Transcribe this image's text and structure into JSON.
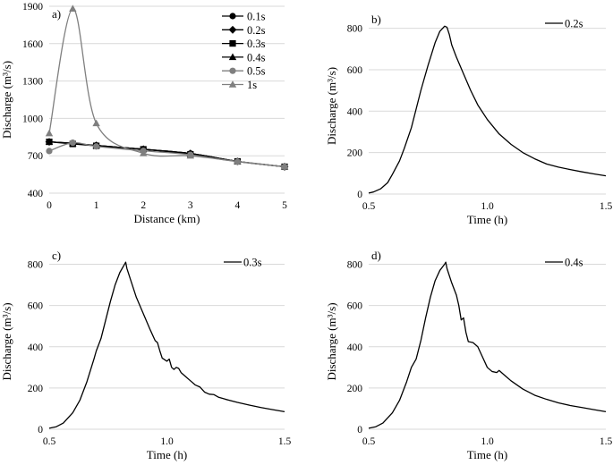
{
  "chart_data": [
    {
      "panel": "a)",
      "type": "line",
      "xlabel": "Distance (km)",
      "ylabel": "Discharge (m³/s)",
      "xlim": [
        0,
        5
      ],
      "ylim": [
        400,
        1900
      ],
      "xticks": [
        0,
        1,
        2,
        3,
        4,
        5
      ],
      "yticks": [
        400,
        700,
        1000,
        1300,
        1600,
        1900
      ],
      "grid": true,
      "legend_position": "top-right",
      "x": [
        0,
        0.5,
        1,
        2,
        3,
        4,
        5
      ],
      "series": [
        {
          "name": "0.1s",
          "values": [
            812,
            800,
            783,
            752,
            718,
            655,
            612
          ],
          "color": "#000000",
          "marker": "circle"
        },
        {
          "name": "0.2s",
          "values": [
            812,
            800,
            783,
            752,
            718,
            655,
            612
          ],
          "color": "#000000",
          "marker": "diamond"
        },
        {
          "name": "0.3s",
          "values": [
            812,
            795,
            780,
            752,
            712,
            655,
            612
          ],
          "color": "#000000",
          "marker": "square"
        },
        {
          "name": "0.4s",
          "values": [
            812,
            800,
            783,
            752,
            718,
            655,
            612
          ],
          "color": "#000000",
          "marker": "triangle"
        },
        {
          "name": "0.5s",
          "values": [
            738,
            805,
            775,
            740,
            708,
            652,
            612
          ],
          "color": "#7f7f7f",
          "marker": "circle"
        },
        {
          "name": "1s",
          "values": [
            880,
            1880,
            960,
            720,
            700,
            655,
            612
          ],
          "color": "#7f7f7f",
          "marker": "triangle"
        }
      ]
    },
    {
      "panel": "b)",
      "type": "line",
      "xlabel": "Time (h)",
      "ylabel": "Discharge (m³/s)",
      "xlim": [
        0.5,
        1.5
      ],
      "ylim": [
        0,
        850
      ],
      "xticks": [
        0.5,
        1.0,
        1.5
      ],
      "xtick_labels": [
        "0.5",
        "1.0",
        "1.5"
      ],
      "yticks": [
        0,
        200,
        400,
        600,
        800
      ],
      "grid": true,
      "legend_position": "top-right",
      "series": [
        {
          "name": "0.2s",
          "x": [
            0.5,
            0.52,
            0.55,
            0.58,
            0.6,
            0.63,
            0.65,
            0.68,
            0.7,
            0.72,
            0.75,
            0.78,
            0.8,
            0.82,
            0.83,
            0.84,
            0.85,
            0.87,
            0.9,
            0.93,
            0.96,
            1.0,
            1.05,
            1.1,
            1.15,
            1.2,
            1.25,
            1.3,
            1.35,
            1.4,
            1.45,
            1.5
          ],
          "y": [
            5,
            10,
            25,
            55,
            95,
            160,
            220,
            320,
            410,
            500,
            620,
            730,
            785,
            810,
            805,
            770,
            720,
            660,
            580,
            500,
            430,
            360,
            290,
            240,
            200,
            170,
            145,
            130,
            118,
            107,
            97,
            88
          ]
        }
      ]
    },
    {
      "panel": "c)",
      "type": "line",
      "xlabel": "Time (h)",
      "ylabel": "Discharge (m³/s)",
      "xlim": [
        0.5,
        1.5
      ],
      "ylim": [
        0,
        850
      ],
      "xticks": [
        0.5,
        1.0,
        1.5
      ],
      "xtick_labels": [
        "0.5",
        "1.0",
        "1.5"
      ],
      "yticks": [
        0,
        200,
        400,
        600,
        800
      ],
      "grid": true,
      "legend_position": "top-right",
      "series": [
        {
          "name": "0.3s",
          "x": [
            0.5,
            0.53,
            0.56,
            0.6,
            0.63,
            0.66,
            0.69,
            0.7,
            0.72,
            0.74,
            0.76,
            0.78,
            0.8,
            0.82,
            0.825,
            0.83,
            0.85,
            0.87,
            0.9,
            0.93,
            0.95,
            0.96,
            0.97,
            0.98,
            1.0,
            1.01,
            1.02,
            1.03,
            1.04,
            1.05,
            1.06,
            1.08,
            1.1,
            1.12,
            1.14,
            1.16,
            1.18,
            1.2,
            1.22,
            1.25,
            1.3,
            1.35,
            1.4,
            1.45,
            1.5
          ],
          "y": [
            5,
            12,
            30,
            80,
            140,
            230,
            340,
            380,
            440,
            530,
            620,
            700,
            760,
            800,
            810,
            780,
            710,
            640,
            560,
            480,
            430,
            420,
            380,
            345,
            330,
            340,
            300,
            290,
            300,
            295,
            275,
            255,
            235,
            215,
            205,
            180,
            170,
            168,
            155,
            145,
            130,
            117,
            105,
            95,
            85
          ]
        }
      ]
    },
    {
      "panel": "d)",
      "type": "line",
      "xlabel": "Time (h)",
      "ylabel": "Discharge (m³/s)",
      "xlim": [
        0.5,
        1.5
      ],
      "ylim": [
        0,
        850
      ],
      "xticks": [
        0.5,
        1.0,
        1.5
      ],
      "xtick_labels": [
        "0.5",
        "1.0",
        "1.5"
      ],
      "yticks": [
        0,
        200,
        400,
        600,
        800
      ],
      "grid": true,
      "legend_position": "top-right",
      "series": [
        {
          "name": "0.4s",
          "x": [
            0.5,
            0.53,
            0.56,
            0.6,
            0.63,
            0.66,
            0.68,
            0.7,
            0.72,
            0.74,
            0.76,
            0.78,
            0.8,
            0.82,
            0.825,
            0.83,
            0.85,
            0.87,
            0.88,
            0.89,
            0.9,
            0.91,
            0.92,
            0.94,
            0.96,
            0.98,
            1.0,
            1.02,
            1.04,
            1.05,
            1.06,
            1.08,
            1.1,
            1.15,
            1.2,
            1.25,
            1.3,
            1.35,
            1.4,
            1.45,
            1.5
          ],
          "y": [
            5,
            12,
            30,
            80,
            140,
            230,
            300,
            340,
            430,
            540,
            640,
            720,
            770,
            800,
            810,
            780,
            710,
            650,
            600,
            530,
            540,
            470,
            425,
            420,
            400,
            350,
            300,
            280,
            275,
            285,
            275,
            255,
            235,
            195,
            165,
            145,
            128,
            115,
            105,
            95,
            85
          ]
        }
      ]
    }
  ]
}
